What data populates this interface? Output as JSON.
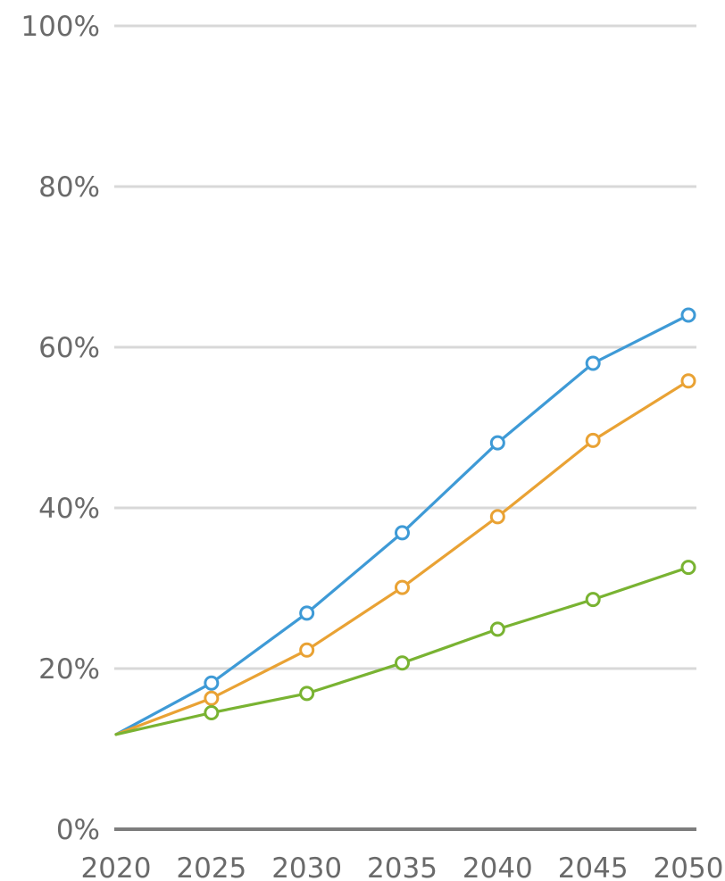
{
  "chart_data": {
    "type": "line",
    "title": "",
    "xlabel": "",
    "ylabel": "",
    "x": [
      2020,
      2025,
      2030,
      2035,
      2040,
      2045,
      2050
    ],
    "x_tick_labels": [
      "2020",
      "2025",
      "2030",
      "2035",
      "2040",
      "2045",
      "2050"
    ],
    "ylim": [
      0,
      100
    ],
    "y_ticks": [
      0,
      20,
      40,
      60,
      80,
      100
    ],
    "y_tick_labels": [
      "0%",
      "20%",
      "40%",
      "60%",
      "80%",
      "100%"
    ],
    "grid": true,
    "legend": "none",
    "series": [
      {
        "color": "#3e9ad6",
        "values": [
          11.8,
          18.2,
          26.9,
          36.9,
          48.1,
          58.0,
          64.0
        ]
      },
      {
        "color": "#e9a234",
        "values": [
          11.8,
          16.3,
          22.3,
          30.1,
          38.9,
          48.4,
          55.8
        ]
      },
      {
        "color": "#79b332",
        "values": [
          11.8,
          14.5,
          16.9,
          20.7,
          24.9,
          28.6,
          32.6
        ]
      }
    ]
  }
}
